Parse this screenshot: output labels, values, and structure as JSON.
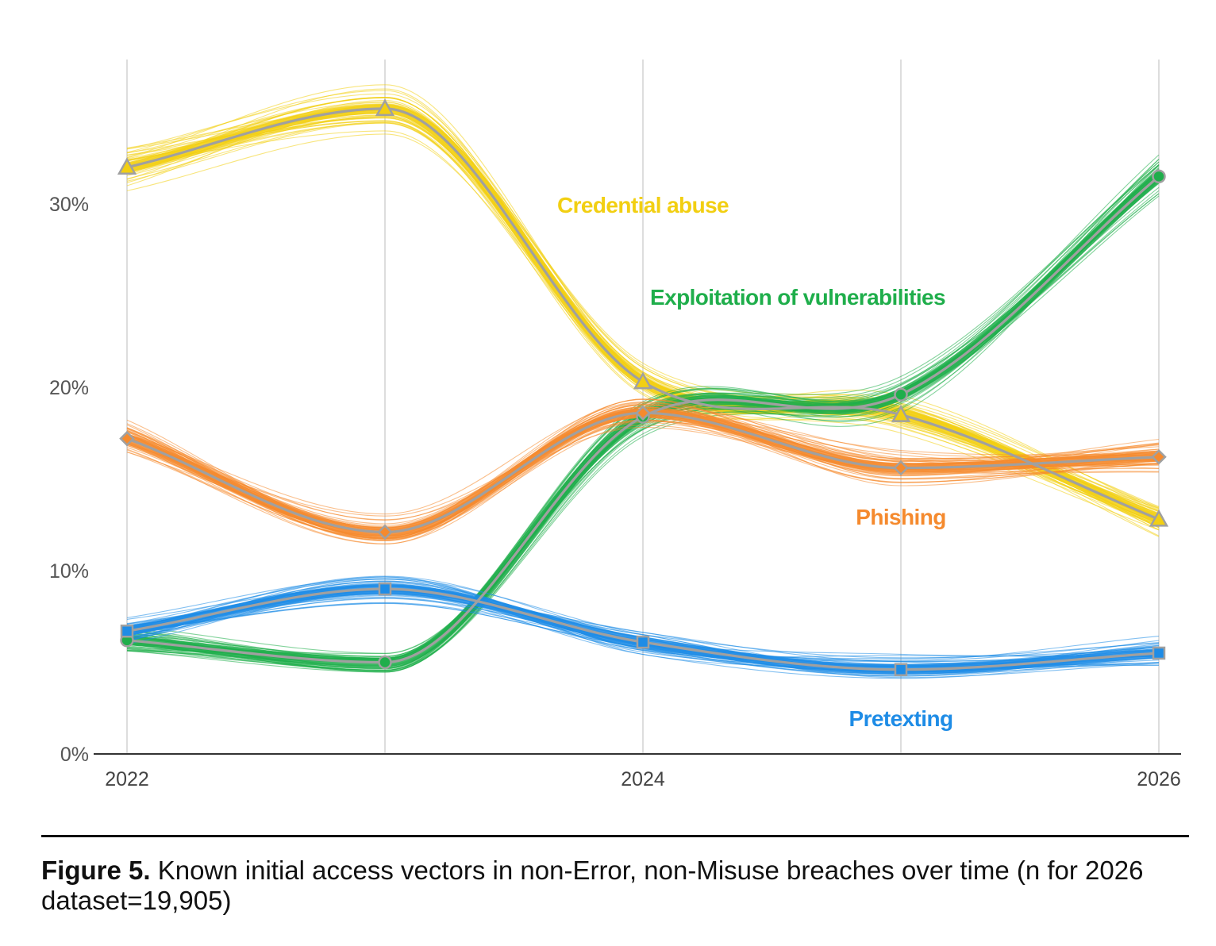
{
  "chart_data": {
    "type": "line",
    "x": [
      2022,
      2023,
      2024,
      2025,
      2026
    ],
    "x_tick_labels": [
      "2022",
      "2024",
      "2026"
    ],
    "y_tick_labels": [
      "0%",
      "10%",
      "20%",
      "30%"
    ],
    "ylim": [
      0,
      38
    ],
    "grid": "vertical",
    "series": [
      {
        "name": "Credential abuse",
        "values": [
          32.0,
          35.2,
          20.3,
          18.5,
          12.8
        ],
        "color": "#F2CF12",
        "marker": "triangle"
      },
      {
        "name": "Exploitation of vulnerabilities",
        "values": [
          6.2,
          5.0,
          18.4,
          19.6,
          31.5
        ],
        "color": "#1FAE4B",
        "marker": "circle"
      },
      {
        "name": "Phishing",
        "values": [
          17.2,
          12.1,
          18.6,
          15.6,
          16.2
        ],
        "color": "#F58A2E",
        "marker": "diamond"
      },
      {
        "name": "Pretexting",
        "values": [
          6.7,
          9.0,
          6.1,
          4.6,
          5.5
        ],
        "color": "#1E8CE6",
        "marker": "square"
      }
    ],
    "line_color": "#A0A0A0"
  },
  "caption": {
    "label": "Figure 5.",
    "text": " Known initial access vectors in non-Error, non-Misuse breaches over time (n for 2026 dataset=19,905)"
  }
}
